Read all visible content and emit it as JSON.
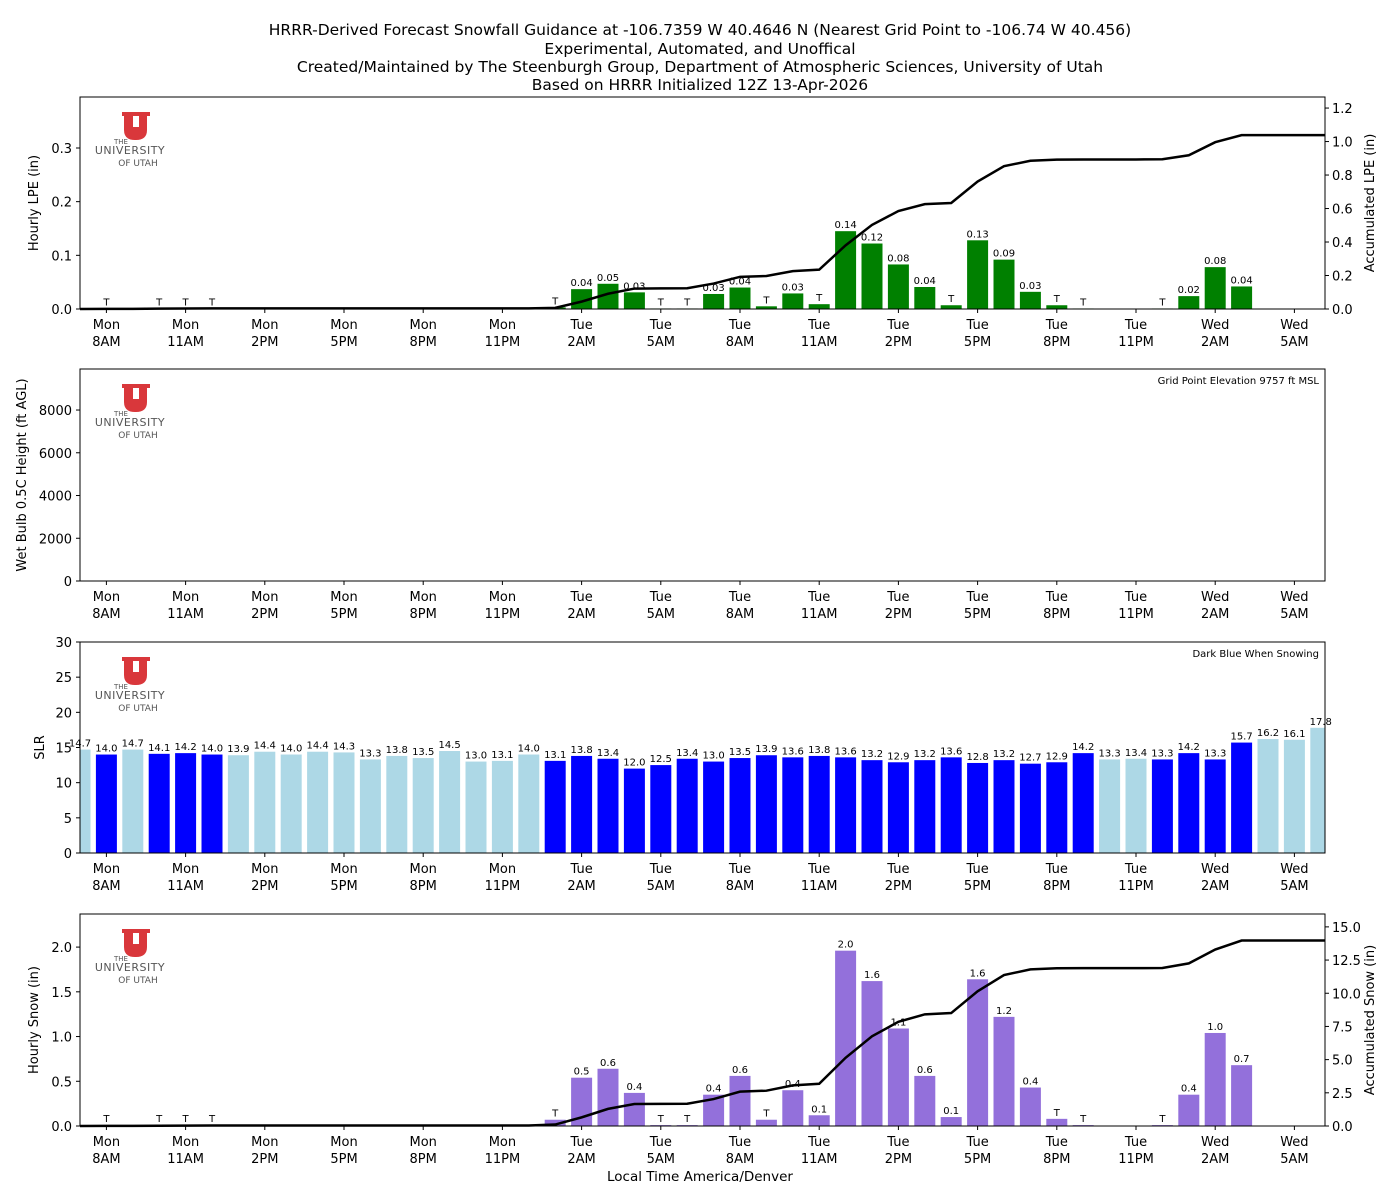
{
  "title_lines": [
    "HRRR-Derived Forecast Snowfall Guidance at -106.7359 W 40.4646 N (Nearest Grid Point to -106.74 W 40.456)",
    "Experimental, Automated, and Unoffical",
    "Created/Maintained by The Steenburgh Group, Department of Atmospheric Sciences, University of Utah",
    "Based on HRRR Initialized 12Z 13-Apr-2026"
  ],
  "logo": {
    "text": [
      "THE",
      "UNIVERSITY",
      "OF UTAH"
    ],
    "color": "#d9373b"
  },
  "xlabel": "Local Time America/Denver",
  "colors": {
    "lpe": "#008000",
    "snow": "#9370db",
    "slr_snowing": "#0000ff",
    "slr_not_snowing": "#add8e6",
    "accum_line": "#000000"
  },
  "chart_data": {
    "type": "bar",
    "categories": [
      "Mon 7AM",
      "Mon 8AM",
      "Mon 9AM",
      "Mon 10AM",
      "Mon 11AM",
      "Mon 12PM",
      "Mon 1PM",
      "Mon 2PM",
      "Mon 3PM",
      "Mon 4PM",
      "Mon 5PM",
      "Mon 6PM",
      "Mon 7PM",
      "Mon 8PM",
      "Mon 9PM",
      "Mon 10PM",
      "Mon 11PM",
      "Tue 12AM",
      "Tue 1AM",
      "Tue 2AM",
      "Tue 3AM",
      "Tue 4AM",
      "Tue 5AM",
      "Tue 6AM",
      "Tue 7AM",
      "Tue 8AM",
      "Tue 9AM",
      "Tue 10AM",
      "Tue 11AM",
      "Tue 12PM",
      "Tue 1PM",
      "Tue 2PM",
      "Tue 3PM",
      "Tue 4PM",
      "Tue 5PM",
      "Tue 6PM",
      "Tue 7PM",
      "Tue 8PM",
      "Tue 9PM",
      "Tue 10PM",
      "Tue 11PM",
      "Wed 12AM",
      "Wed 1AM",
      "Wed 2AM",
      "Wed 3AM",
      "Wed 4AM",
      "Wed 5AM",
      "Wed 6AM"
    ],
    "x_ticks": [
      {
        "cat": "Mon 8AM",
        "l1": "Mon",
        "l2": "8AM"
      },
      {
        "cat": "Mon 11AM",
        "l1": "Mon",
        "l2": "11AM"
      },
      {
        "cat": "Mon 2PM",
        "l1": "Mon",
        "l2": "2PM"
      },
      {
        "cat": "Mon 5PM",
        "l1": "Mon",
        "l2": "5PM"
      },
      {
        "cat": "Mon 8PM",
        "l1": "Mon",
        "l2": "8PM"
      },
      {
        "cat": "Mon 11PM",
        "l1": "Mon",
        "l2": "11PM"
      },
      {
        "cat": "Tue 2AM",
        "l1": "Tue",
        "l2": "2AM"
      },
      {
        "cat": "Tue 5AM",
        "l1": "Tue",
        "l2": "5AM"
      },
      {
        "cat": "Tue 8AM",
        "l1": "Tue",
        "l2": "8AM"
      },
      {
        "cat": "Tue 11AM",
        "l1": "Tue",
        "l2": "11AM"
      },
      {
        "cat": "Tue 2PM",
        "l1": "Tue",
        "l2": "2PM"
      },
      {
        "cat": "Tue 5PM",
        "l1": "Tue",
        "l2": "5PM"
      },
      {
        "cat": "Tue 8PM",
        "l1": "Tue",
        "l2": "8PM"
      },
      {
        "cat": "Tue 11PM",
        "l1": "Tue",
        "l2": "11PM"
      },
      {
        "cat": "Wed 2AM",
        "l1": "Wed",
        "l2": "2AM"
      },
      {
        "cat": "Wed 5AM",
        "l1": "Wed",
        "l2": "5AM"
      }
    ],
    "panels": [
      {
        "id": "lpe",
        "ylabel": "Hourly LPE (in)",
        "ylim": [
          0,
          0.395
        ],
        "yticks": [
          0.0,
          0.1,
          0.2,
          0.3
        ],
        "ytick_fmt": 1,
        "y2label": "Accumulated LPE (in)",
        "y2lim": [
          0,
          1.266
        ],
        "y2ticks": [
          0.0,
          0.2,
          0.4,
          0.6,
          0.8,
          1.0,
          1.2
        ],
        "y2tick_fmt": 1,
        "values": [
          0,
          0.001,
          0,
          0.001,
          0.001,
          0.001,
          0,
          0,
          0,
          0,
          0,
          0,
          0,
          0,
          0,
          0,
          0,
          0,
          0.003,
          0.037,
          0.047,
          0.031,
          0.001,
          0.001,
          0.028,
          0.04,
          0.005,
          0.029,
          0.009,
          0.145,
          0.122,
          0.083,
          0.041,
          0.007,
          0.128,
          0.092,
          0.032,
          0.007,
          0.001,
          0,
          0,
          0.001,
          0.024,
          0.078,
          0.042,
          0,
          0,
          0
        ],
        "labels": [
          "",
          "T",
          "",
          "T",
          "T",
          "T",
          "",
          "",
          "",
          "",
          "",
          "",
          "",
          "",
          "",
          "",
          "",
          "",
          "T",
          "0.04",
          "0.05",
          "0.03",
          "T",
          "T",
          "0.03",
          "0.04",
          "T",
          "0.03",
          "T",
          "0.14",
          "0.12",
          "0.08",
          "0.04",
          "T",
          "0.13",
          "0.09",
          "0.03",
          "T",
          "T",
          "",
          "",
          "T",
          "0.02",
          "0.08",
          "0.04",
          "",
          "",
          ""
        ],
        "accumulated": true
      },
      {
        "id": "wetbulb",
        "ylabel": "Wet Bulb 0.5C Height (ft AGL)",
        "ylim": [
          0,
          9920
        ],
        "yticks": [
          0,
          2000,
          4000,
          6000,
          8000
        ],
        "ytick_fmt": 0,
        "annotation": "Grid Point Elevation 9757 ft MSL",
        "values": [],
        "labels": []
      },
      {
        "id": "slr",
        "ylabel": "SLR",
        "ylim": [
          0,
          30
        ],
        "yticks": [
          0,
          5,
          10,
          15,
          20,
          25,
          30
        ],
        "ytick_fmt": 0,
        "annotation": "Dark Blue When Snowing",
        "values": [
          14.7,
          14.0,
          14.7,
          14.1,
          14.2,
          14.0,
          13.9,
          14.4,
          14.0,
          14.4,
          14.3,
          13.3,
          13.8,
          13.5,
          14.5,
          13.0,
          13.1,
          14.0,
          13.1,
          13.8,
          13.4,
          12.0,
          12.5,
          13.4,
          13.0,
          13.5,
          13.9,
          13.6,
          13.8,
          13.6,
          13.2,
          12.9,
          13.2,
          13.6,
          12.8,
          13.2,
          12.7,
          12.9,
          14.2,
          13.3,
          13.4,
          13.3,
          14.2,
          13.3,
          15.7,
          16.2,
          16.1,
          17.8
        ],
        "snowing": [
          0,
          1,
          0,
          1,
          1,
          1,
          0,
          0,
          0,
          0,
          0,
          0,
          0,
          0,
          0,
          0,
          0,
          0,
          1,
          1,
          1,
          1,
          1,
          1,
          1,
          1,
          1,
          1,
          1,
          1,
          1,
          1,
          1,
          1,
          1,
          1,
          1,
          1,
          1,
          0,
          0,
          1,
          1,
          1,
          1,
          0,
          0,
          0
        ]
      },
      {
        "id": "snow",
        "ylabel": "Hourly Snow (in)",
        "ylim": [
          0,
          2.37
        ],
        "yticks": [
          0.0,
          0.5,
          1.0,
          1.5,
          2.0
        ],
        "ytick_fmt": 1,
        "y2label": "Accumulated Snow (in)",
        "y2lim": [
          0,
          15.97
        ],
        "y2ticks": [
          0.0,
          2.5,
          5.0,
          7.5,
          10.0,
          12.5,
          15.0
        ],
        "y2tick_fmt": 1,
        "values": [
          0,
          0.01,
          0,
          0.01,
          0.01,
          0.01,
          0,
          0,
          0,
          0,
          0,
          0,
          0,
          0,
          0,
          0,
          0,
          0,
          0.07,
          0.54,
          0.64,
          0.37,
          0.01,
          0.01,
          0.35,
          0.56,
          0.07,
          0.4,
          0.12,
          1.96,
          1.62,
          1.09,
          0.56,
          0.1,
          1.64,
          1.22,
          0.43,
          0.08,
          0.01,
          0,
          0,
          0.01,
          0.35,
          1.04,
          0.68,
          0,
          0,
          0
        ],
        "labels": [
          "",
          "T",
          "",
          "T",
          "T",
          "T",
          "",
          "",
          "",
          "",
          "",
          "",
          "",
          "",
          "",
          "",
          "",
          "",
          "T",
          "0.5",
          "0.6",
          "0.4",
          "T",
          "T",
          "0.4",
          "0.6",
          "T",
          "0.4",
          "0.1",
          "2.0",
          "1.6",
          "1.1",
          "0.6",
          "0.1",
          "1.6",
          "1.2",
          "0.4",
          "T",
          "T",
          "",
          "",
          "T",
          "0.4",
          "1.0",
          "0.7",
          "",
          "",
          ""
        ],
        "accumulated": true
      }
    ]
  }
}
